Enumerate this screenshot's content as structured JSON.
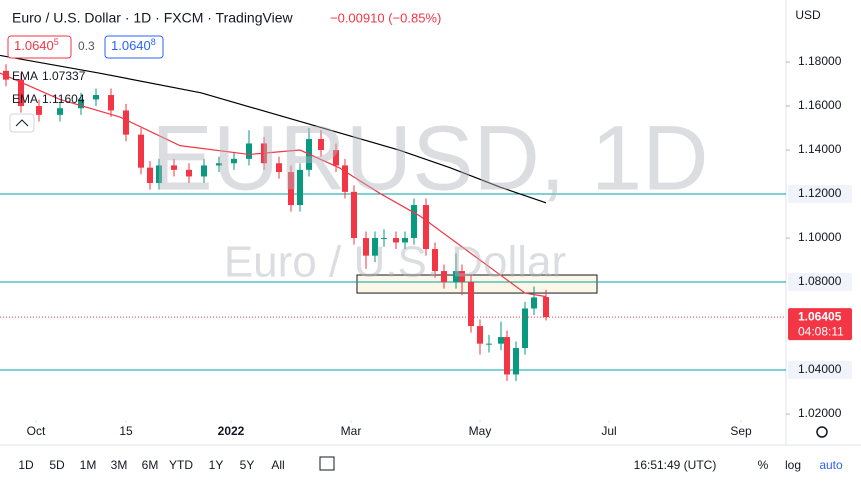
{
  "header": {
    "symbol": "Euro / U.S. Dollar · 1D · FXCM · TradingView",
    "change": "−0.00910 (−0.85%)",
    "bid": "1.0640",
    "bid_sup": "5",
    "spread": "0.3",
    "ask": "1.0640",
    "ask_sup": "8",
    "currency": "USD"
  },
  "watermark": {
    "ticker": "EURUSD, 1D",
    "name": "Euro / U.S. Dollar"
  },
  "toolbar": {
    "ranges": [
      "1D",
      "5D",
      "1M",
      "3M",
      "6M",
      "YTD",
      "1Y",
      "5Y",
      "All"
    ],
    "time": "16:51:49 (UTC)",
    "percent": "%",
    "log": "log",
    "auto": "auto"
  },
  "chart_data": {
    "type": "candlestick",
    "x": [
      2,
      7,
      13,
      20,
      27,
      32,
      37,
      42,
      47,
      50,
      53,
      58,
      63,
      68,
      73,
      78,
      83,
      88,
      93,
      97,
      100,
      103,
      107,
      112,
      115,
      118,
      122,
      125,
      128,
      132,
      135,
      138,
      142,
      145,
      148,
      152,
      154,
      157,
      160,
      163,
      167,
      169,
      172,
      175,
      178,
      182
    ],
    "open": [
      1.176,
      1.172,
      1.16,
      1.156,
      1.159,
      1.163,
      1.165,
      1.158,
      1.147,
      1.132,
      1.125,
      1.133,
      1.131,
      1.128,
      1.133,
      1.134,
      1.136,
      1.143,
      1.134,
      1.13,
      1.115,
      1.131,
      1.145,
      1.14,
      1.133,
      1.121,
      1.1,
      1.092,
      1.1,
      1.1,
      1.098,
      1.1,
      1.115,
      1.095,
      1.085,
      1.08,
      1.085,
      1.08,
      1.06,
      1.052,
      1.052,
      1.055,
      1.038,
      1.05,
      1.068,
      1.0732
    ],
    "high": [
      1.179,
      1.175,
      1.163,
      1.162,
      1.166,
      1.168,
      1.168,
      1.161,
      1.15,
      1.135,
      1.136,
      1.136,
      1.134,
      1.136,
      1.137,
      1.139,
      1.149,
      1.146,
      1.137,
      1.133,
      1.134,
      1.15,
      1.149,
      1.143,
      1.136,
      1.124,
      1.103,
      1.103,
      1.104,
      1.103,
      1.103,
      1.118,
      1.118,
      1.098,
      1.088,
      1.093,
      1.088,
      1.083,
      1.063,
      1.056,
      1.062,
      1.058,
      1.053,
      1.071,
      1.078,
      1.0765
    ],
    "low": [
      1.169,
      1.157,
      1.153,
      1.153,
      1.156,
      1.16,
      1.155,
      1.144,
      1.129,
      1.122,
      1.122,
      1.128,
      1.125,
      1.125,
      1.13,
      1.131,
      1.133,
      1.131,
      1.127,
      1.112,
      1.112,
      1.128,
      1.137,
      1.13,
      1.118,
      1.097,
      1.086,
      1.089,
      1.096,
      1.095,
      1.095,
      1.097,
      1.092,
      1.082,
      1.077,
      1.077,
      1.074,
      1.057,
      1.047,
      1.048,
      1.049,
      1.035,
      1.035,
      1.047,
      1.065,
      1.0625
    ],
    "close": [
      1.172,
      1.16,
      1.156,
      1.159,
      1.163,
      1.165,
      1.158,
      1.147,
      1.132,
      1.125,
      1.133,
      1.131,
      1.128,
      1.133,
      1.134,
      1.136,
      1.143,
      1.134,
      1.13,
      1.115,
      1.131,
      1.145,
      1.14,
      1.133,
      1.121,
      1.1,
      1.092,
      1.1,
      1.1,
      1.098,
      1.1,
      1.115,
      1.095,
      1.085,
      1.08,
      1.085,
      1.08,
      1.06,
      1.052,
      1.052,
      1.055,
      1.038,
      1.05,
      1.068,
      1.073,
      1.06405
    ],
    "up_color": "#089981",
    "down_color": "#f23645",
    "xlim": [
      0,
      262
    ],
    "xticks": [
      {
        "value": 12,
        "label": "Oct"
      },
      {
        "value": 42,
        "label": "15"
      },
      {
        "value": 77,
        "label": "2022"
      },
      {
        "value": 117,
        "label": "Mar"
      },
      {
        "value": 160,
        "label": "May"
      },
      {
        "value": 203,
        "label": "Jul"
      },
      {
        "value": 247,
        "label": "Sep"
      }
    ],
    "ylim": [
      1.0173,
      1.2082
    ],
    "yticks": [
      {
        "value": 1.18,
        "label": "1.18000"
      },
      {
        "value": 1.16,
        "label": "1.16000"
      },
      {
        "value": 1.14,
        "label": "1.14000"
      },
      {
        "value": 1.1,
        "label": "1.10000"
      },
      {
        "value": 1.02,
        "label": "1.02000"
      }
    ],
    "lines": [
      {
        "name": "EMA",
        "color": "#f23645",
        "x": [
          0,
          20,
          40,
          60,
          83,
          100,
          113,
          127,
          140,
          153,
          167,
          175,
          182
        ],
        "values": [
          1.175,
          1.163,
          1.155,
          1.142,
          1.138,
          1.14,
          1.132,
          1.12,
          1.11,
          1.097,
          1.083,
          1.075,
          1.07337
        ]
      },
      {
        "name": "EMA",
        "color": "#000000",
        "x": [
          0,
          33,
          67,
          100,
          133,
          150,
          167,
          182
        ],
        "values": [
          1.183,
          1.175,
          1.166,
          1.153,
          1.14,
          1.132,
          1.123,
          1.11604
        ]
      }
    ],
    "hlines": [
      {
        "value": 1.12,
        "label": "1.12000"
      },
      {
        "value": 1.08,
        "label": "1.08000"
      },
      {
        "value": 1.04,
        "label": "1.04000"
      }
    ],
    "hline_color": "#00a0a8",
    "zone": {
      "x": [
        119,
        199
      ],
      "y": [
        1.075,
        1.0832
      ],
      "color": "#fbf3dc"
    },
    "last_price": {
      "value": 1.06405,
      "countdown": "04:08:11",
      "color": "#f23645"
    }
  }
}
